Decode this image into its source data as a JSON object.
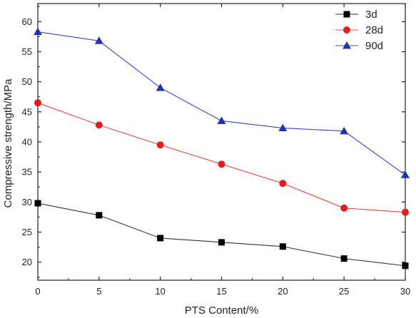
{
  "chart_data": {
    "type": "line",
    "xlabel": "PTS Content/%",
    "ylabel": "Compressive strength/MPa",
    "x": [
      0,
      5,
      10,
      15,
      20,
      25,
      30
    ],
    "xlim": [
      0,
      30
    ],
    "ylim": [
      17,
      63
    ],
    "xticks": [
      "0",
      "5",
      "10",
      "15",
      "20",
      "25",
      "30"
    ],
    "yticks": [
      "20",
      "25",
      "30",
      "35",
      "40",
      "45",
      "50",
      "55",
      "60"
    ],
    "grid": false,
    "legend_position": "top-right",
    "series": [
      {
        "name": "3d",
        "color": "#333333",
        "marker_color": "#000000",
        "marker": "square",
        "values": [
          29.8,
          27.8,
          24.0,
          23.3,
          22.6,
          20.6,
          19.4
        ]
      },
      {
        "name": "28d",
        "color": "#e04848",
        "marker_color": "#e02020",
        "marker": "circle",
        "values": [
          46.5,
          42.8,
          39.5,
          36.3,
          33.1,
          29.0,
          28.3
        ]
      },
      {
        "name": "90d",
        "color": "#3a48b4",
        "marker_color": "#2233aa",
        "marker": "triangle",
        "values": [
          58.3,
          56.8,
          49.0,
          43.5,
          42.3,
          41.8,
          34.5
        ]
      }
    ]
  }
}
